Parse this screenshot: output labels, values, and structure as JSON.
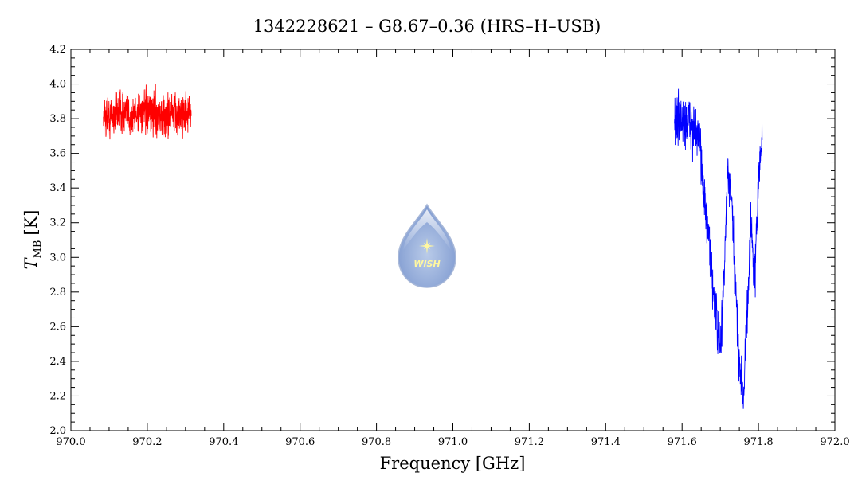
{
  "chart_data": {
    "type": "line",
    "title": "1342228621 – G8.67–0.36 (HRS–H–USB)",
    "xlabel": "Frequency [GHz]",
    "ylabel_symbol": "T",
    "ylabel_sub": "MB",
    "ylabel_unit": "[K]",
    "xlim": [
      970.0,
      972.0
    ],
    "ylim": [
      2.0,
      4.2
    ],
    "x_ticks": [
      970.0,
      970.2,
      970.4,
      970.6,
      970.8,
      971.0,
      971.2,
      971.4,
      971.6,
      971.8,
      972.0
    ],
    "x_tick_labels": [
      "970.0",
      "970.2",
      "970.4",
      "970.6",
      "970.8",
      "971.0",
      "971.2",
      "971.4",
      "971.6",
      "971.8",
      "972.0"
    ],
    "y_ticks": [
      2.0,
      2.2,
      2.4,
      2.6,
      2.8,
      3.0,
      3.2,
      3.4,
      3.6,
      3.8,
      4.0,
      4.2
    ],
    "y_tick_labels": [
      "2.0",
      "2.2",
      "2.4",
      "2.6",
      "2.8",
      "3.0",
      "3.2",
      "3.4",
      "3.6",
      "3.8",
      "4.0",
      "4.2"
    ],
    "grid": false,
    "series": [
      {
        "color": "#ff0000",
        "x": [
          970.085,
          970.1,
          970.12,
          970.14,
          970.16,
          970.18,
          970.2,
          970.22,
          970.24,
          970.26,
          970.28,
          970.3,
          970.315
        ],
        "y": [
          3.82,
          3.8,
          3.84,
          3.83,
          3.81,
          3.85,
          3.82,
          3.84,
          3.8,
          3.83,
          3.82,
          3.84,
          3.82
        ],
        "noise": 0.12
      },
      {
        "color": "#0000ff",
        "x": [
          971.58,
          971.6,
          971.62,
          971.64,
          971.65,
          971.66,
          971.67,
          971.68,
          971.69,
          971.7,
          971.71,
          971.72,
          971.73,
          971.74,
          971.75,
          971.76,
          971.77,
          971.78,
          971.79,
          971.8,
          971.81
        ],
        "y": [
          3.8,
          3.78,
          3.78,
          3.7,
          3.6,
          3.3,
          3.1,
          2.85,
          2.65,
          2.45,
          2.9,
          3.5,
          3.3,
          2.8,
          2.4,
          2.2,
          2.65,
          3.2,
          2.85,
          3.45,
          3.7
        ],
        "noise": 0.14
      }
    ],
    "logo_text": "WISH",
    "logo_colors": {
      "top": "#c9d6ef",
      "body": "#8aa6d9",
      "star": "#fff7a0"
    }
  }
}
